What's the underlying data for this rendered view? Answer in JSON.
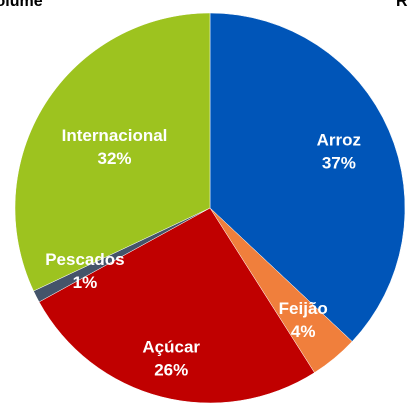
{
  "chart_data": {
    "type": "pie",
    "title": "Volume",
    "other_title": "R",
    "categories": [
      "Arroz",
      "Feijão",
      "Açúcar",
      "Pescados",
      "Internacional"
    ],
    "values": [
      37,
      4,
      26,
      1,
      32
    ],
    "value_labels": [
      "37%",
      "4%",
      "26%",
      "1%",
      "32%"
    ],
    "colors": [
      "#0055b8",
      "#f07f3c",
      "#c00000",
      "#44546a",
      "#9dc31f"
    ]
  }
}
